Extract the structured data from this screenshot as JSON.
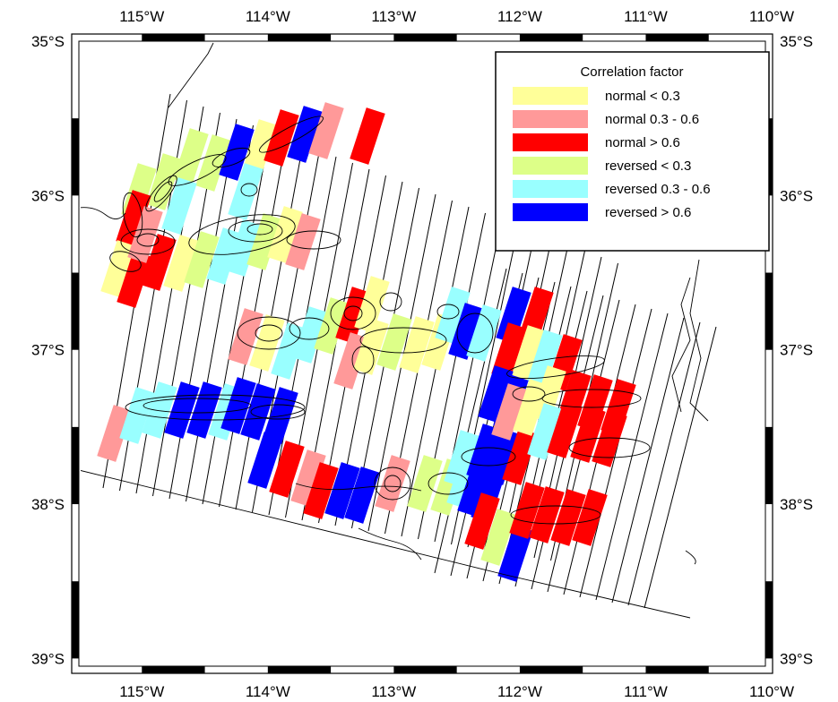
{
  "map": {
    "lon_ticks": [
      "115°W",
      "114°W",
      "113°W",
      "112°W",
      "111°W",
      "110°W"
    ],
    "lat_ticks": [
      "35°S",
      "36°S",
      "37°S",
      "38°S",
      "39°S"
    ],
    "lon_values": [
      -115,
      -114,
      -113,
      -112,
      -111,
      -110
    ],
    "lat_values": [
      -35,
      -36,
      -37,
      -38,
      -39
    ],
    "extent": {
      "lon_min": -115.5,
      "lon_max": -110.05,
      "lat_min": -39.05,
      "lat_max": -35.0
    }
  },
  "legend": {
    "title": "Correlation factor",
    "entries": [
      {
        "key": "normal_low",
        "label": "normal < 0.3",
        "color": "#ffff99"
      },
      {
        "key": "normal_mid",
        "label": "normal 0.3 - 0.6",
        "color": "#ff9999"
      },
      {
        "key": "normal_high",
        "label": "normal > 0.6",
        "color": "#ff0000"
      },
      {
        "key": "reversed_low",
        "label": "reversed < 0.3",
        "color": "#ddff88"
      },
      {
        "key": "reversed_mid",
        "label": "reversed 0.3 - 0.6",
        "color": "#99ffff"
      },
      {
        "key": "reversed_high",
        "label": "reversed > 0.6",
        "color": "#0000ff"
      }
    ]
  }
}
